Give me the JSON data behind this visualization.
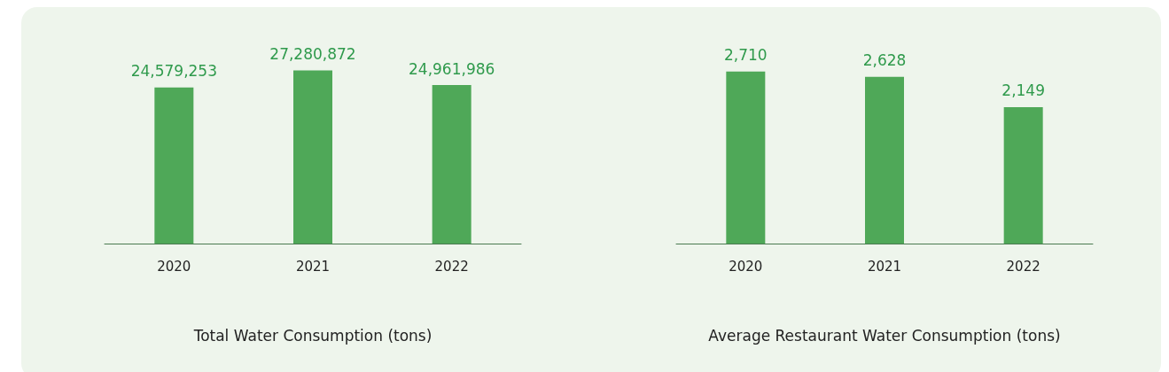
{
  "chart_data": [
    {
      "type": "bar",
      "title": "Total Water Consumption (tons)",
      "categories": [
        "2020",
        "2021",
        "2022"
      ],
      "values": [
        24579253,
        27280872,
        24961986
      ],
      "color": "#4fa858",
      "value_labels": [
        "24,579,253",
        "27,280,872",
        "24,961,986"
      ]
    },
    {
      "type": "bar",
      "title": "Average Restaurant Water Consumption (tons)",
      "categories": [
        "2020",
        "2021",
        "2022"
      ],
      "values": [
        2710,
        2628,
        2149
      ],
      "color": "#4fa858",
      "value_labels": [
        "2,710",
        "2,628",
        "2,149"
      ]
    }
  ]
}
